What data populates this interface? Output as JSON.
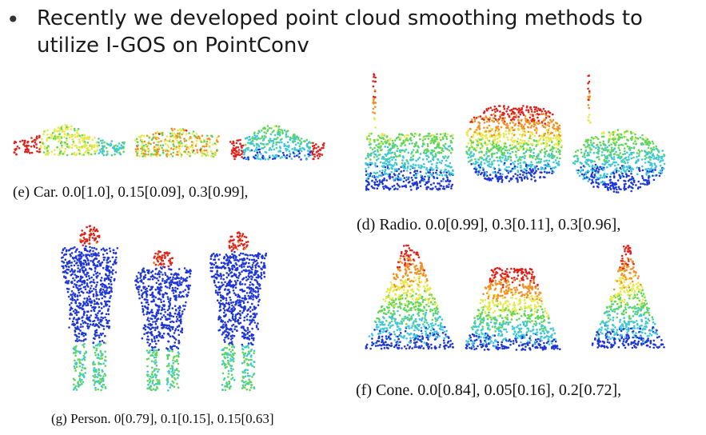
{
  "bullet": {
    "line1": "Recently we developed point cloud smoothing methods to",
    "line2": "utilize I-GOS on PointConv"
  },
  "figures": {
    "car": {
      "caption": "(e) Car. 0.0[1.0], 0.15[0.09], 0.3[0.99],"
    },
    "radio": {
      "caption": "(d) Radio. 0.0[0.99], 0.3[0.11], 0.3[0.96],"
    },
    "person": {
      "caption": "(g) Person. 0[0.79], 0.1[0.15], 0.15[0.63]"
    },
    "cone": {
      "caption": "(f) Cone. 0.0[0.84], 0.05[0.16], 0.2[0.72],"
    }
  },
  "colors": {
    "heat_red": "#e0201a",
    "heat_orange": "#f29024",
    "heat_yellow": "#e8e84a",
    "heat_green": "#5fd65a",
    "heat_cyan": "#3cc8d8",
    "heat_blue": "#1e35d8"
  }
}
